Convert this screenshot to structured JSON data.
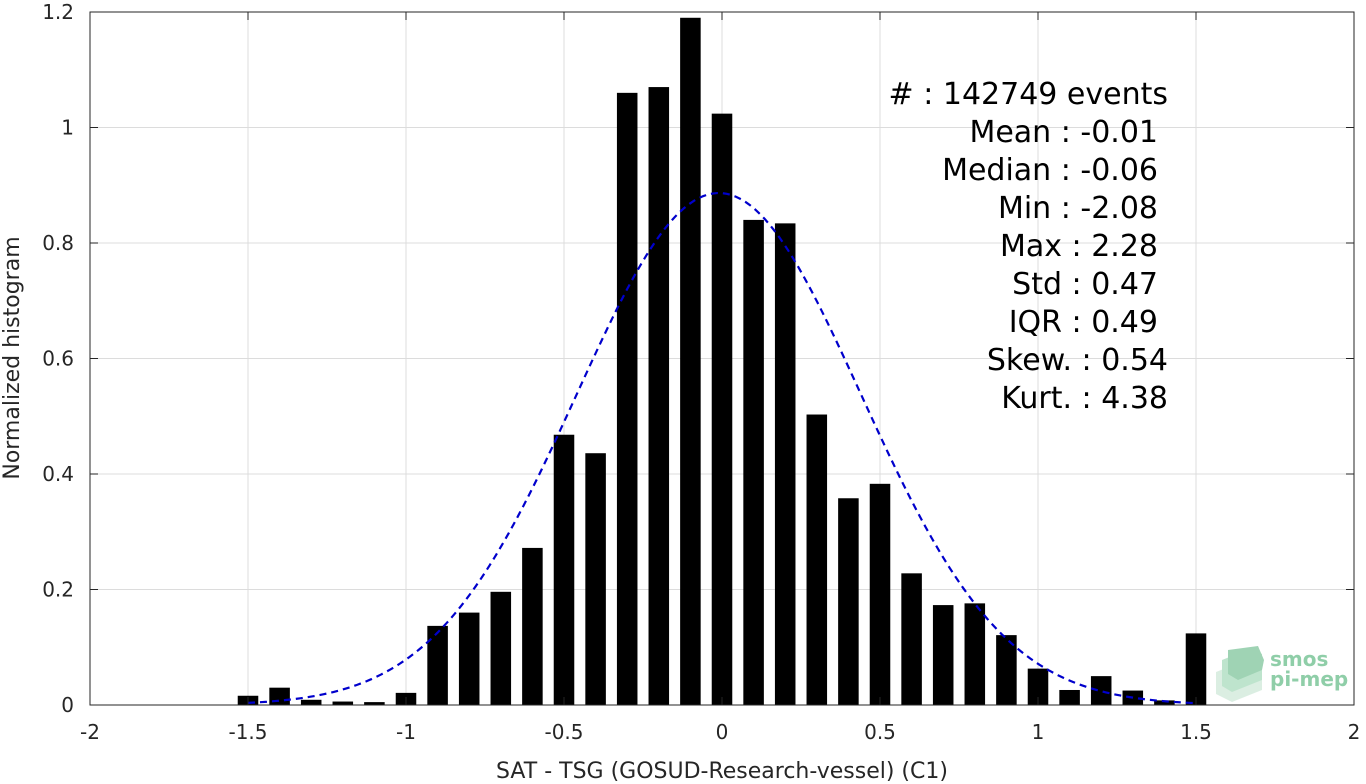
{
  "chart_data": {
    "type": "bar",
    "xlabel": "SAT - TSG (GOSUD-Research-vessel) (C1)",
    "ylabel": "Normalized histogram",
    "xlim": [
      -2,
      2
    ],
    "ylim": [
      0,
      1.2
    ],
    "x_ticks": [
      -2,
      -1.5,
      -1,
      -0.5,
      0,
      0.5,
      1,
      1.5,
      2
    ],
    "x_tick_labels": [
      "-2",
      "-1.5",
      "-1",
      "-0.5",
      "0",
      "0.5",
      "1",
      "1.5",
      "2"
    ],
    "y_ticks": [
      0,
      0.2,
      0.4,
      0.6,
      0.8,
      1,
      1.2
    ],
    "y_tick_labels": [
      "0",
      "0.2",
      "0.4",
      "0.6",
      "0.8",
      "1",
      "1.2"
    ],
    "grid": true,
    "bin_width": 0.1,
    "bins": [
      {
        "x": -1.5,
        "y": 0.016
      },
      {
        "x": -1.4,
        "y": 0.03
      },
      {
        "x": -1.3,
        "y": 0.009
      },
      {
        "x": -1.2,
        "y": 0.006
      },
      {
        "x": -1.1,
        "y": 0.005
      },
      {
        "x": -1.0,
        "y": 0.021
      },
      {
        "x": -0.9,
        "y": 0.137
      },
      {
        "x": -0.8,
        "y": 0.16
      },
      {
        "x": -0.7,
        "y": 0.196
      },
      {
        "x": -0.6,
        "y": 0.272
      },
      {
        "x": -0.5,
        "y": 0.468
      },
      {
        "x": -0.4,
        "y": 0.436
      },
      {
        "x": -0.3,
        "y": 1.06
      },
      {
        "x": -0.2,
        "y": 1.07
      },
      {
        "x": -0.1,
        "y": 1.19
      },
      {
        "x": 0.0,
        "y": 1.024
      },
      {
        "x": 0.1,
        "y": 0.84
      },
      {
        "x": 0.2,
        "y": 0.834
      },
      {
        "x": 0.3,
        "y": 0.503
      },
      {
        "x": 0.4,
        "y": 0.358
      },
      {
        "x": 0.5,
        "y": 0.383
      },
      {
        "x": 0.6,
        "y": 0.228
      },
      {
        "x": 0.7,
        "y": 0.173
      },
      {
        "x": 0.8,
        "y": 0.176
      },
      {
        "x": 0.9,
        "y": 0.121
      },
      {
        "x": 1.0,
        "y": 0.063
      },
      {
        "x": 1.1,
        "y": 0.026
      },
      {
        "x": 1.2,
        "y": 0.05
      },
      {
        "x": 1.3,
        "y": 0.025
      },
      {
        "x": 1.4,
        "y": 0.008
      },
      {
        "x": 1.5,
        "y": 0.124
      }
    ],
    "bar_color": "#000000",
    "fit_curve": {
      "type": "gaussian",
      "mean": -0.01,
      "std": 0.45,
      "x_range": [
        -1.5,
        1.5
      ],
      "color": "#0000cc",
      "style": "dashed"
    },
    "stats": [
      {
        "label": "#  : 142749 events"
      },
      {
        "label": "Mean : -0.01"
      },
      {
        "label": "Median : -0.06"
      },
      {
        "label": "Min : -2.08"
      },
      {
        "label": "Max : 2.28"
      },
      {
        "label": "Std : 0.47"
      },
      {
        "label": "IQR : 0.49"
      },
      {
        "label": "Skew. : 0.54"
      },
      {
        "label": "Kurt. : 4.38"
      }
    ]
  },
  "logo": {
    "line1": "smos",
    "line2": "pi-mep",
    "color": "#8fcea8"
  }
}
